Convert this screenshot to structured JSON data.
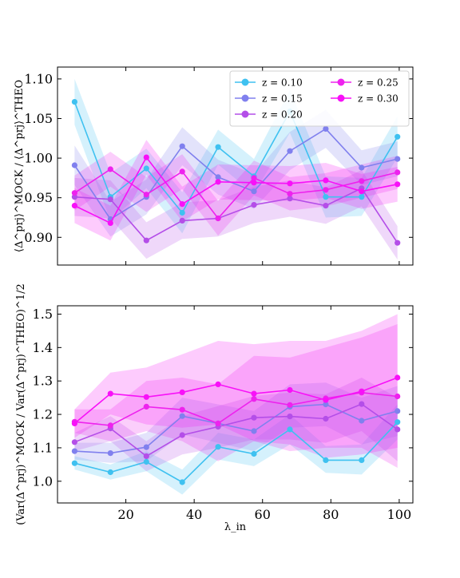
{
  "chart_data": [
    {
      "type": "line",
      "ylabel": "⟨Δ^prj⟩^MOCK / ⟨Δ^prj⟩^THEO",
      "xlim": [
        0,
        104
      ],
      "ylim": [
        0.865,
        1.115
      ],
      "x_ticks": [
        20,
        40,
        60,
        80,
        100
      ],
      "x_tick_labels": [],
      "y_ticks": [
        0.9,
        0.95,
        1.0,
        1.05,
        1.1
      ],
      "y_tick_labels": [
        "0.90",
        "0.95",
        "1.00",
        "1.05",
        "1.10"
      ],
      "legend": {
        "placement": "top-right",
        "columns": 2
      },
      "x": [
        5,
        15.5,
        26,
        36.5,
        47,
        57.5,
        68,
        78.5,
        89,
        99.5
      ],
      "series": [
        {
          "name": "z = 0.10",
          "color": "#3fc1f0",
          "values": [
            1.071,
            0.951,
            0.987,
            0.931,
            1.014,
            0.977,
            1.059,
            0.951,
            0.951,
            1.027
          ],
          "lower": [
            1.042,
            0.921,
            0.962,
            0.905,
            0.992,
            0.955,
            1.032,
            0.925,
            0.927,
            1.001
          ],
          "upper": [
            1.1,
            0.981,
            1.012,
            0.957,
            1.036,
            0.999,
            1.086,
            0.977,
            0.975,
            1.053
          ]
        },
        {
          "name": "z = 0.15",
          "color": "#8080ee",
          "values": [
            0.991,
            0.923,
            0.951,
            1.015,
            0.976,
            0.958,
            1.009,
            1.037,
            0.988,
            0.999
          ],
          "lower": [
            0.966,
            0.901,
            0.929,
            0.991,
            0.954,
            0.936,
            0.985,
            1.013,
            0.966,
            0.977
          ],
          "upper": [
            1.016,
            0.945,
            0.973,
            1.039,
            0.998,
            0.98,
            1.033,
            1.061,
            1.01,
            1.021
          ]
        },
        {
          "name": "z = 0.20",
          "color": "#b44ee8",
          "values": [
            0.951,
            0.948,
            0.896,
            0.921,
            0.924,
            0.941,
            0.949,
            0.94,
            0.962,
            0.893
          ],
          "lower": [
            0.927,
            0.924,
            0.873,
            0.898,
            0.901,
            0.918,
            0.926,
            0.917,
            0.939,
            0.872
          ],
          "upper": [
            0.975,
            0.972,
            0.919,
            0.944,
            0.947,
            0.964,
            0.972,
            0.963,
            0.985,
            0.914
          ]
        },
        {
          "name": "z = 0.25",
          "color": "#ee22ee",
          "values": [
            0.956,
            0.986,
            0.954,
            0.983,
            0.924,
            0.975,
            0.955,
            0.96,
            0.971,
            0.982
          ],
          "lower": [
            0.934,
            0.964,
            0.932,
            0.961,
            0.902,
            0.953,
            0.934,
            0.939,
            0.95,
            0.961
          ],
          "upper": [
            0.978,
            1.008,
            0.976,
            1.005,
            0.946,
            0.997,
            0.976,
            0.981,
            0.992,
            1.003
          ]
        },
        {
          "name": "z = 0.30",
          "color": "#f810f8",
          "values": [
            0.94,
            0.918,
            1.001,
            0.942,
            0.97,
            0.969,
            0.968,
            0.972,
            0.958,
            0.967
          ],
          "lower": [
            0.918,
            0.896,
            0.979,
            0.92,
            0.948,
            0.947,
            0.946,
            0.95,
            0.936,
            0.945
          ],
          "upper": [
            0.962,
            0.94,
            1.023,
            0.964,
            0.992,
            0.991,
            0.99,
            0.994,
            0.98,
            0.989
          ]
        }
      ]
    },
    {
      "type": "line",
      "ylabel": "(Var(Δ^prj)^MOCK / Var(Δ^prj)^THEO)^1/2",
      "xlabel": "λ_in",
      "xlim": [
        0,
        104
      ],
      "ylim": [
        0.935,
        1.525
      ],
      "x_ticks": [
        20,
        40,
        60,
        80,
        100
      ],
      "x_tick_labels": [
        "20",
        "40",
        "60",
        "80",
        "100"
      ],
      "y_ticks": [
        1.0,
        1.1,
        1.2,
        1.3,
        1.4,
        1.5
      ],
      "y_tick_labels": [
        "1.0",
        "1.1",
        "1.2",
        "1.3",
        "1.4",
        "1.5"
      ],
      "x": [
        5,
        15.5,
        26,
        36.5,
        47,
        57.5,
        68,
        78.5,
        89,
        99.5
      ],
      "series": [
        {
          "name": "z = 0.10",
          "color": "#3fc1f0",
          "values": [
            1.054,
            1.027,
            1.058,
            0.997,
            1.103,
            1.082,
            1.155,
            1.063,
            1.063,
            1.177
          ],
          "lower": [
            1.035,
            1.005,
            1.03,
            0.96,
            1.065,
            1.045,
            1.11,
            1.025,
            1.02,
            1.125
          ],
          "upper": [
            1.075,
            1.05,
            1.09,
            1.035,
            1.145,
            1.125,
            1.2,
            1.105,
            1.11,
            1.23
          ]
        },
        {
          "name": "z = 0.15",
          "color": "#8080ee",
          "values": [
            1.09,
            1.084,
            1.102,
            1.195,
            1.173,
            1.15,
            1.223,
            1.23,
            1.181,
            1.21
          ],
          "lower": [
            1.065,
            1.055,
            1.06,
            1.14,
            1.115,
            1.09,
            1.16,
            1.165,
            1.11,
            1.135
          ],
          "upper": [
            1.115,
            1.115,
            1.145,
            1.25,
            1.23,
            1.21,
            1.29,
            1.295,
            1.25,
            1.285
          ]
        },
        {
          "name": "z = 0.20",
          "color": "#b44ee8",
          "values": [
            1.117,
            1.158,
            1.075,
            1.138,
            1.163,
            1.19,
            1.194,
            1.187,
            1.231,
            1.155
          ],
          "lower": [
            1.09,
            1.12,
            1.03,
            1.08,
            1.1,
            1.125,
            1.125,
            1.115,
            1.15,
            1.06
          ],
          "upper": [
            1.145,
            1.195,
            1.12,
            1.195,
            1.225,
            1.255,
            1.265,
            1.26,
            1.31,
            1.25
          ]
        },
        {
          "name": "z = 0.25",
          "color": "#ee22ee",
          "values": [
            1.178,
            1.167,
            1.223,
            1.214,
            1.173,
            1.246,
            1.228,
            1.248,
            1.265,
            1.254
          ],
          "lower": [
            1.145,
            1.12,
            1.15,
            1.12,
            1.06,
            1.12,
            1.09,
            1.1,
            1.1,
            1.04
          ],
          "upper": [
            1.215,
            1.215,
            1.3,
            1.31,
            1.29,
            1.375,
            1.37,
            1.4,
            1.43,
            1.47
          ]
        },
        {
          "name": "z = 0.30",
          "color": "#f810f8",
          "values": [
            1.173,
            1.262,
            1.252,
            1.266,
            1.29,
            1.262,
            1.273,
            1.243,
            1.269,
            1.31
          ],
          "lower": [
            1.13,
            1.2,
            1.17,
            1.16,
            1.17,
            1.12,
            1.11,
            1.07,
            1.08,
            1.1
          ],
          "upper": [
            1.215,
            1.325,
            1.34,
            1.38,
            1.42,
            1.41,
            1.42,
            1.42,
            1.45,
            1.5
          ]
        }
      ]
    }
  ]
}
